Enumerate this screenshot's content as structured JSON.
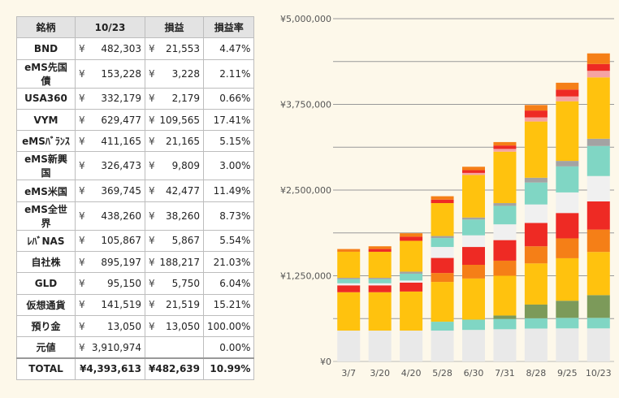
{
  "table": {
    "headers": [
      "銘柄",
      "10/23",
      "損益",
      "損益率"
    ],
    "currency": "¥",
    "rows": [
      {
        "name": "BND",
        "amount": "482,303",
        "pl": "21,553",
        "rate": "4.47%"
      },
      {
        "name": "eMS先国債",
        "amount": "153,228",
        "pl": "3,228",
        "rate": "2.11%"
      },
      {
        "name": "USA360",
        "amount": "332,179",
        "pl": "2,179",
        "rate": "0.66%"
      },
      {
        "name": "VYM",
        "amount": "629,477",
        "pl": "109,565",
        "rate": "17.41%"
      },
      {
        "name": "eMSﾊﾞﾗﾝｽ",
        "amount": "411,165",
        "pl": "21,165",
        "rate": "5.15%"
      },
      {
        "name": "eMS新興国",
        "amount": "326,473",
        "pl": "9,809",
        "rate": "3.00%"
      },
      {
        "name": "eMS米国",
        "amount": "369,745",
        "pl": "42,477",
        "rate": "11.49%"
      },
      {
        "name": "eMS全世界",
        "amount": "438,260",
        "pl": "38,260",
        "rate": "8.73%"
      },
      {
        "name": "ﾚﾊﾞNAS",
        "amount": "105,867",
        "pl": "5,867",
        "rate": "5.54%"
      },
      {
        "name": "自社株",
        "amount": "895,197",
        "pl": "188,217",
        "rate": "21.03%"
      },
      {
        "name": "GLD",
        "amount": "95,150",
        "pl": "5,750",
        "rate": "6.04%"
      },
      {
        "name": "仮想通貨",
        "amount": "141,519",
        "pl": "21,519",
        "rate": "15.21%"
      },
      {
        "name": "預り金",
        "amount": "13,050",
        "pl": "13,050",
        "rate": "100.00%"
      },
      {
        "name": "元値",
        "amount": "3,910,974",
        "pl": "",
        "rate": "0.00%"
      }
    ],
    "total": {
      "name": "TOTAL",
      "amount": "¥4,393,613",
      "pl": "¥482,639",
      "rate": "10.99%"
    }
  },
  "chart_data": {
    "type": "bar",
    "stacked": true,
    "categories": [
      "3/7",
      "3/20",
      "4/20",
      "5/28",
      "6/30",
      "7/31",
      "8/28",
      "9/25",
      "10/23"
    ],
    "ylim": [
      0,
      5000000
    ],
    "yticks": [
      0,
      1250000,
      2500000,
      3750000,
      5000000
    ],
    "ytick_labels": [
      "¥0",
      "¥1,250,000",
      "¥2,500,000",
      "¥3,750,000",
      "¥5,000,000"
    ],
    "grid": true,
    "series": [
      {
        "color": "#e9e9e9",
        "values": [
          450000,
          450000,
          450000,
          450000,
          460000,
          470000,
          480000,
          482303,
          482303
        ]
      },
      {
        "color": "#80d6c4",
        "values": [
          0,
          0,
          0,
          130000,
          150000,
          150000,
          150000,
          153228,
          153228
        ]
      },
      {
        "color": "#7c9a5a",
        "values": [
          0,
          0,
          0,
          0,
          0,
          50000,
          200000,
          250000,
          332179
        ]
      },
      {
        "color": "#ffc20e",
        "values": [
          560000,
          560000,
          570000,
          580000,
          600000,
          580000,
          600000,
          620000,
          629477
        ]
      },
      {
        "color": "#f57f17",
        "values": [
          0,
          0,
          0,
          130000,
          200000,
          220000,
          250000,
          290000,
          326473
        ]
      },
      {
        "color": "#ee2a24",
        "values": [
          100000,
          100000,
          130000,
          220000,
          260000,
          300000,
          340000,
          370000,
          411165
        ]
      },
      {
        "color": "#f2e4e4",
        "values": [
          0,
          0,
          0,
          0,
          0,
          0,
          0,
          0,
          0
        ]
      },
      {
        "color": "#f0f0f0",
        "values": [
          30000,
          30000,
          30000,
          160000,
          170000,
          230000,
          270000,
          300000,
          369745
        ]
      },
      {
        "color": "#80d6c4",
        "values": [
          60000,
          60000,
          100000,
          130000,
          230000,
          270000,
          320000,
          380000,
          438260
        ]
      },
      {
        "color": "#a3a3a3",
        "values": [
          20000,
          20000,
          30000,
          30000,
          30000,
          40000,
          70000,
          80000,
          105867
        ]
      },
      {
        "color": "#ffc20e",
        "values": [
          380000,
          380000,
          450000,
          480000,
          620000,
          750000,
          820000,
          870000,
          895197
        ]
      },
      {
        "color": "#f5a3a3",
        "values": [
          0,
          0,
          0,
          0,
          30000,
          40000,
          60000,
          70000,
          95150
        ]
      },
      {
        "color": "#ee2a24",
        "values": [
          0,
          40000,
          60000,
          50000,
          40000,
          50000,
          100000,
          100000,
          100000
        ]
      },
      {
        "color": "#f57f17",
        "values": [
          40000,
          40000,
          50000,
          50000,
          50000,
          50000,
          80000,
          100000,
          154569
        ]
      }
    ]
  }
}
